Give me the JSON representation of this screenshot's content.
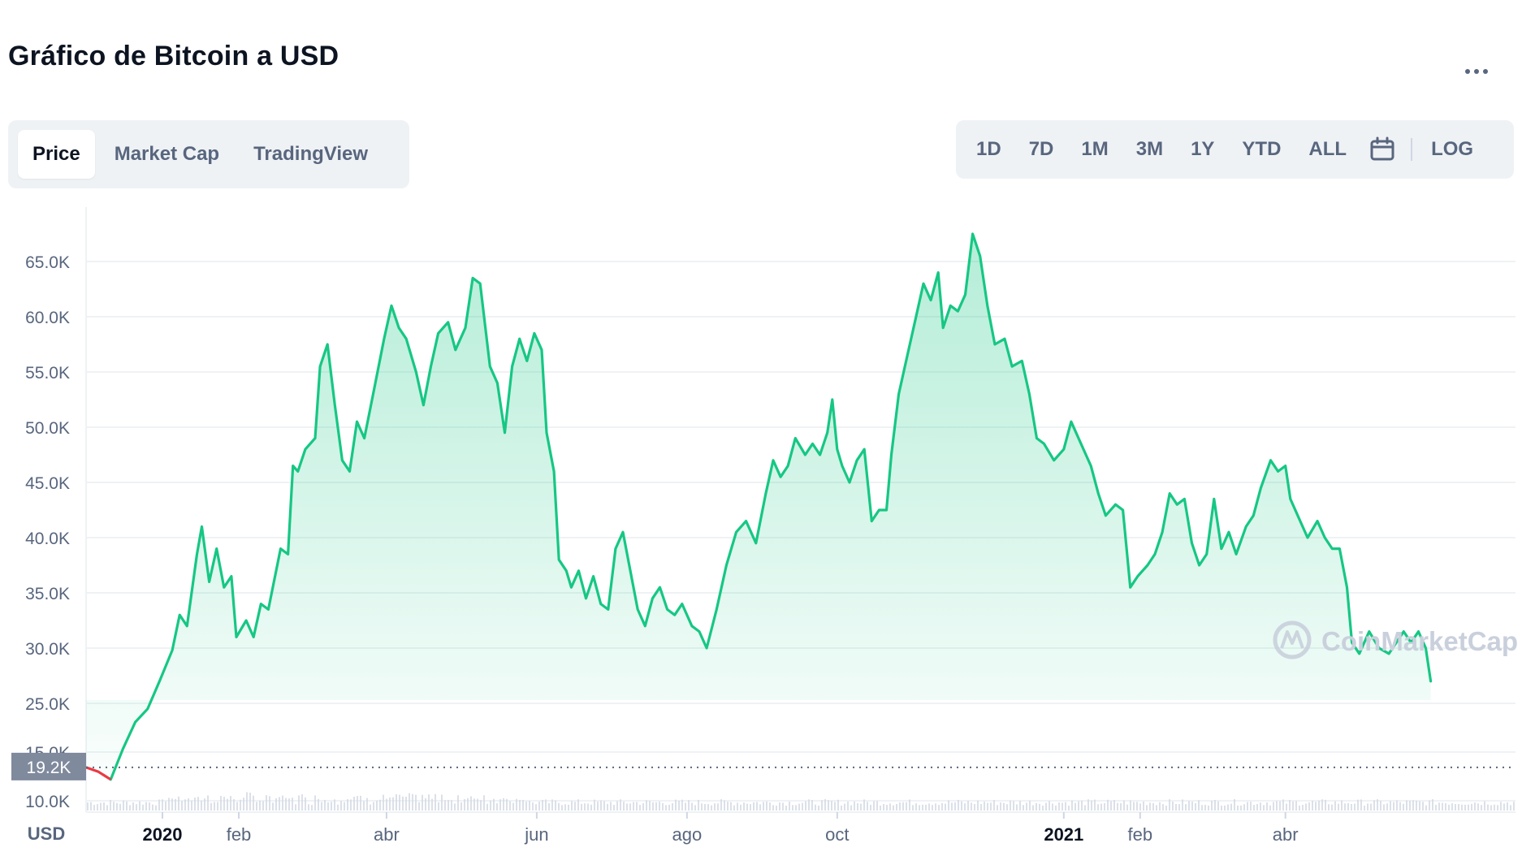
{
  "header": {
    "title": "Gráfico de Bitcoin a USD",
    "more_icon": "more-horizontal-icon"
  },
  "tabs": [
    {
      "label": "Price",
      "active": true
    },
    {
      "label": "Market Cap",
      "active": false
    },
    {
      "label": "TradingView",
      "active": false
    }
  ],
  "ranges": {
    "items": [
      "1D",
      "7D",
      "1M",
      "3M",
      "1Y",
      "YTD",
      "ALL"
    ],
    "calendar_icon": "calendar-icon",
    "log_label": "LOG"
  },
  "watermark": {
    "text": "CoinMarketCap",
    "icon": "coinmarketcap-logo-icon"
  },
  "colors": {
    "up": "#16c784",
    "down": "#ea3943",
    "price_tag_bg": "#808a9d",
    "grid": "#eff2f5",
    "text_muted": "#58667e"
  },
  "chart_data": {
    "type": "line",
    "currency_label": "USD",
    "y_ticks": [
      "65.0K",
      "60.0K",
      "55.0K",
      "50.0K",
      "45.0K",
      "40.0K",
      "35.0K",
      "30.0K",
      "25.0K",
      "15.0K",
      "10.0K"
    ],
    "y_tick_values": [
      65000,
      60000,
      55000,
      50000,
      45000,
      40000,
      35000,
      30000,
      25000,
      15000,
      10000
    ],
    "ylim": [
      8000,
      70000
    ],
    "x_ticks": [
      {
        "label": "2020",
        "bold": true,
        "date": "2020-01-01"
      },
      {
        "label": "feb",
        "bold": false,
        "date": "2020-02-01"
      },
      {
        "label": "abr",
        "bold": false,
        "date": "2020-04-01"
      },
      {
        "label": "jun",
        "bold": false,
        "date": "2020-06-01"
      },
      {
        "label": "ago",
        "bold": false,
        "date": "2020-08-01"
      },
      {
        "label": "oct",
        "bold": false,
        "date": "2020-10-01"
      },
      {
        "label": "2021",
        "bold": true,
        "date": "2021-01-01"
      },
      {
        "label": "feb",
        "bold": false,
        "date": "2021-02-01"
      },
      {
        "label": "abr",
        "bold": false,
        "date": "2021-04-01"
      }
    ],
    "reference_price": {
      "label": "19.2K",
      "value": 19200
    },
    "series": [
      {
        "points": [
          [
            "2019-12-01",
            19200
          ],
          [
            "2019-12-06",
            18800
          ],
          [
            "2019-12-11",
            18100
          ],
          [
            "2019-12-16",
            20900
          ],
          [
            "2019-12-21",
            23300
          ],
          [
            "2019-12-26",
            24500
          ],
          [
            "2019-12-31",
            27100
          ],
          [
            "2020-01-05",
            29800
          ],
          [
            "2020-01-08",
            33000
          ],
          [
            "2020-01-11",
            32000
          ],
          [
            "2020-01-15",
            38500
          ],
          [
            "2020-01-17",
            41000
          ],
          [
            "2020-01-20",
            36000
          ],
          [
            "2020-01-23",
            39000
          ],
          [
            "2020-01-26",
            35500
          ],
          [
            "2020-01-29",
            36500
          ],
          [
            "2020-01-31",
            31000
          ],
          [
            "2020-02-04",
            32500
          ],
          [
            "2020-02-07",
            31000
          ],
          [
            "2020-02-10",
            34000
          ],
          [
            "2020-02-13",
            33500
          ],
          [
            "2020-02-18",
            39000
          ],
          [
            "2020-02-21",
            38500
          ],
          [
            "2020-02-23",
            46500
          ],
          [
            "2020-02-25",
            46000
          ],
          [
            "2020-02-28",
            48000
          ],
          [
            "2020-03-03",
            49000
          ],
          [
            "2020-03-05",
            55500
          ],
          [
            "2020-03-08",
            57500
          ],
          [
            "2020-03-11",
            52000
          ],
          [
            "2020-03-14",
            47000
          ],
          [
            "2020-03-17",
            46000
          ],
          [
            "2020-03-20",
            50500
          ],
          [
            "2020-03-23",
            49000
          ],
          [
            "2020-03-27",
            53500
          ],
          [
            "2020-03-31",
            58000
          ],
          [
            "2020-04-03",
            61000
          ],
          [
            "2020-04-06",
            59000
          ],
          [
            "2020-04-09",
            58000
          ],
          [
            "2020-04-13",
            55000
          ],
          [
            "2020-04-16",
            52000
          ],
          [
            "2020-04-19",
            55500
          ],
          [
            "2020-04-22",
            58500
          ],
          [
            "2020-04-26",
            59500
          ],
          [
            "2020-04-29",
            57000
          ],
          [
            "2020-05-03",
            59000
          ],
          [
            "2020-05-06",
            63500
          ],
          [
            "2020-05-09",
            63000
          ],
          [
            "2020-05-13",
            55500
          ],
          [
            "2020-05-16",
            54000
          ],
          [
            "2020-05-19",
            49500
          ],
          [
            "2020-05-22",
            55500
          ],
          [
            "2020-05-25",
            58000
          ],
          [
            "2020-05-28",
            56000
          ],
          [
            "2020-05-31",
            58500
          ],
          [
            "2020-06-03",
            57000
          ],
          [
            "2020-06-05",
            49500
          ],
          [
            "2020-06-08",
            46000
          ],
          [
            "2020-06-10",
            38000
          ],
          [
            "2020-06-13",
            37000
          ],
          [
            "2020-06-15",
            35500
          ],
          [
            "2020-06-18",
            37000
          ],
          [
            "2020-06-21",
            34500
          ],
          [
            "2020-06-24",
            36500
          ],
          [
            "2020-06-27",
            34000
          ],
          [
            "2020-06-30",
            33500
          ],
          [
            "2020-07-03",
            39000
          ],
          [
            "2020-07-06",
            40500
          ],
          [
            "2020-07-09",
            37000
          ],
          [
            "2020-07-12",
            33500
          ],
          [
            "2020-07-15",
            32000
          ],
          [
            "2020-07-18",
            34500
          ],
          [
            "2020-07-21",
            35500
          ],
          [
            "2020-07-24",
            33500
          ],
          [
            "2020-07-27",
            33000
          ],
          [
            "2020-07-30",
            34000
          ],
          [
            "2020-08-03",
            32000
          ],
          [
            "2020-08-06",
            31500
          ],
          [
            "2020-08-09",
            30000
          ],
          [
            "2020-08-13",
            33500
          ],
          [
            "2020-08-17",
            37500
          ],
          [
            "2020-08-21",
            40500
          ],
          [
            "2020-08-25",
            41500
          ],
          [
            "2020-08-29",
            39500
          ],
          [
            "2020-09-02",
            44000
          ],
          [
            "2020-09-05",
            47000
          ],
          [
            "2020-09-08",
            45500
          ],
          [
            "2020-09-11",
            46500
          ],
          [
            "2020-09-14",
            49000
          ],
          [
            "2020-09-18",
            47500
          ],
          [
            "2020-09-21",
            48500
          ],
          [
            "2020-09-24",
            47500
          ],
          [
            "2020-09-27",
            49500
          ],
          [
            "2020-09-29",
            52500
          ],
          [
            "2020-10-01",
            48000
          ],
          [
            "2020-10-03",
            46500
          ],
          [
            "2020-10-06",
            45000
          ],
          [
            "2020-10-09",
            47000
          ],
          [
            "2020-10-12",
            48000
          ],
          [
            "2020-10-15",
            41500
          ],
          [
            "2020-10-18",
            42500
          ],
          [
            "2020-10-21",
            42500
          ],
          [
            "2020-10-23",
            47500
          ],
          [
            "2020-10-26",
            53000
          ],
          [
            "2020-10-29",
            56000
          ],
          [
            "2020-11-02",
            60000
          ],
          [
            "2020-11-05",
            63000
          ],
          [
            "2020-11-08",
            61500
          ],
          [
            "2020-11-11",
            64000
          ],
          [
            "2020-11-13",
            59000
          ],
          [
            "2020-11-16",
            61000
          ],
          [
            "2020-11-19",
            60500
          ],
          [
            "2020-11-22",
            62000
          ],
          [
            "2020-11-25",
            67500
          ],
          [
            "2020-11-28",
            65500
          ],
          [
            "2020-12-01",
            61000
          ],
          [
            "2020-12-04",
            57500
          ],
          [
            "2020-12-08",
            58000
          ],
          [
            "2020-12-11",
            55500
          ],
          [
            "2020-12-15",
            56000
          ],
          [
            "2020-12-18",
            53000
          ],
          [
            "2020-12-21",
            49000
          ],
          [
            "2020-12-24",
            48500
          ],
          [
            "2020-12-28",
            47000
          ],
          [
            "2021-01-01",
            48000
          ],
          [
            "2021-01-04",
            50500
          ],
          [
            "2021-01-08",
            48500
          ],
          [
            "2021-01-12",
            46500
          ],
          [
            "2021-01-15",
            44000
          ],
          [
            "2021-01-18",
            42000
          ],
          [
            "2021-01-22",
            43000
          ],
          [
            "2021-01-25",
            42500
          ],
          [
            "2021-01-28",
            35500
          ],
          [
            "2021-01-31",
            36500
          ],
          [
            "2021-02-04",
            37500
          ],
          [
            "2021-02-07",
            38500
          ],
          [
            "2021-02-10",
            40500
          ],
          [
            "2021-02-13",
            44000
          ],
          [
            "2021-02-16",
            43000
          ],
          [
            "2021-02-19",
            43500
          ],
          [
            "2021-02-22",
            39500
          ],
          [
            "2021-02-25",
            37500
          ],
          [
            "2021-02-28",
            38500
          ],
          [
            "2021-03-03",
            43500
          ],
          [
            "2021-03-06",
            39000
          ],
          [
            "2021-03-09",
            40500
          ],
          [
            "2021-03-12",
            38500
          ],
          [
            "2021-03-16",
            41000
          ],
          [
            "2021-03-19",
            42000
          ],
          [
            "2021-03-22",
            44500
          ],
          [
            "2021-03-26",
            47000
          ],
          [
            "2021-03-29",
            46000
          ],
          [
            "2021-04-01",
            46500
          ],
          [
            "2021-04-03",
            43500
          ],
          [
            "2021-04-07",
            41500
          ],
          [
            "2021-04-10",
            40000
          ],
          [
            "2021-04-14",
            41500
          ],
          [
            "2021-04-17",
            40000
          ],
          [
            "2021-04-20",
            39000
          ],
          [
            "2021-04-23",
            39000
          ],
          [
            "2021-04-26",
            35500
          ],
          [
            "2021-04-28",
            30500
          ],
          [
            "2021-05-01",
            29500
          ],
          [
            "2021-05-05",
            31500
          ],
          [
            "2021-05-09",
            30000
          ],
          [
            "2021-05-13",
            29500
          ],
          [
            "2021-05-16",
            30500
          ],
          [
            "2021-05-19",
            31500
          ],
          [
            "2021-05-22",
            30500
          ],
          [
            "2021-05-25",
            31500
          ],
          [
            "2021-05-28",
            30000
          ],
          [
            "2021-05-30",
            27000
          ]
        ]
      }
    ]
  }
}
